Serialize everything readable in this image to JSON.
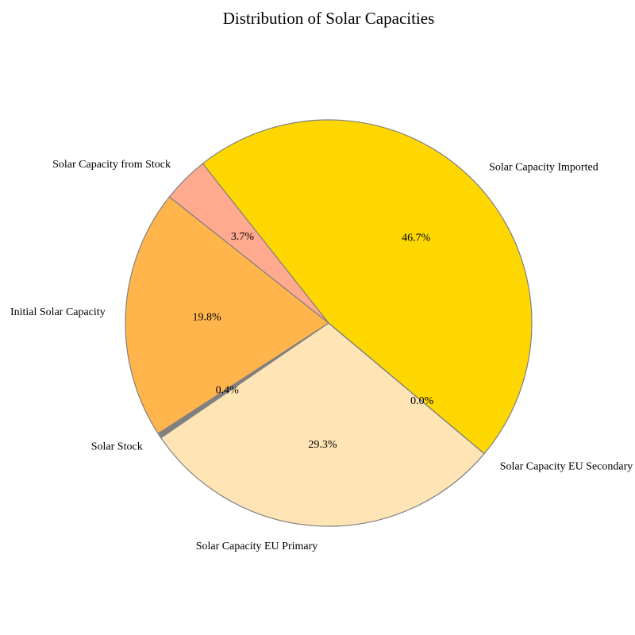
{
  "chart_data": {
    "type": "pie",
    "title": "Distribution of Solar Capacities",
    "slices": [
      {
        "label": "Solar Capacity Imported",
        "value": 46.7,
        "pct_label": "46.7%",
        "color": "#ffd700"
      },
      {
        "label": "Solar Capacity from Stock",
        "value": 3.7,
        "pct_label": "3.7%",
        "color": "#ffa98f"
      },
      {
        "label": "Initial Solar Capacity",
        "value": 19.8,
        "pct_label": "19.8%",
        "color": "#ffb54c"
      },
      {
        "label": "Solar Stock",
        "value": 0.4,
        "pct_label": "0.4%",
        "color": "#808080"
      },
      {
        "label": "Solar Capacity EU Primary",
        "value": 29.3,
        "pct_label": "29.3%",
        "color": "#ffe4b5"
      },
      {
        "label": "Solar Capacity EU Secondary",
        "value": 0.0,
        "pct_label": "0.0%",
        "color": "#ffd700"
      }
    ],
    "edge_color": "#808080",
    "start_angle_deg": -40,
    "direction": "counterclockwise"
  }
}
